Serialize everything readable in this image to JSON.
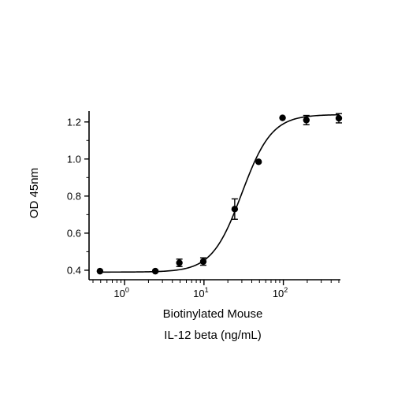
{
  "chart_data": {
    "type": "scatter",
    "title": "",
    "xlabel_lines": [
      "Biotinylated Mouse",
      "IL-12 beta (ng/mL)"
    ],
    "ylabel": "OD 45nm",
    "x_scale": "log",
    "xlim": [
      0.4,
      500
    ],
    "ylim": [
      0.37,
      1.25
    ],
    "x_ticks": [
      {
        "value": 1,
        "base": "10",
        "exp": "0"
      },
      {
        "value": 10,
        "base": "10",
        "exp": "1"
      },
      {
        "value": 100,
        "base": "10",
        "exp": "2"
      }
    ],
    "y_ticks": [
      {
        "value": 0.4,
        "label": "0.4"
      },
      {
        "value": 0.6,
        "label": "0.6"
      },
      {
        "value": 0.8,
        "label": "0.8"
      },
      {
        "value": 1.0,
        "label": "1.0"
      },
      {
        "value": 1.2,
        "label": "1.2"
      }
    ],
    "points": [
      {
        "x": 0.49,
        "y": 0.395,
        "err": 0.0
      },
      {
        "x": 2.44,
        "y": 0.395,
        "err": 0.005
      },
      {
        "x": 4.9,
        "y": 0.44,
        "err": 0.02
      },
      {
        "x": 9.8,
        "y": 0.447,
        "err": 0.02
      },
      {
        "x": 24.4,
        "y": 0.73,
        "err": 0.055
      },
      {
        "x": 48.8,
        "y": 0.985,
        "err": 0.0
      },
      {
        "x": 97.7,
        "y": 1.222,
        "err": 0.0
      },
      {
        "x": 195,
        "y": 1.21,
        "err": 0.025
      },
      {
        "x": 500,
        "y": 1.22,
        "err": 0.025
      }
    ],
    "fit": {
      "model": "4PL",
      "bottom": 0.39,
      "top": 1.24,
      "ec50": 30,
      "hill": 2.3
    },
    "grid": false,
    "legend": "none"
  }
}
